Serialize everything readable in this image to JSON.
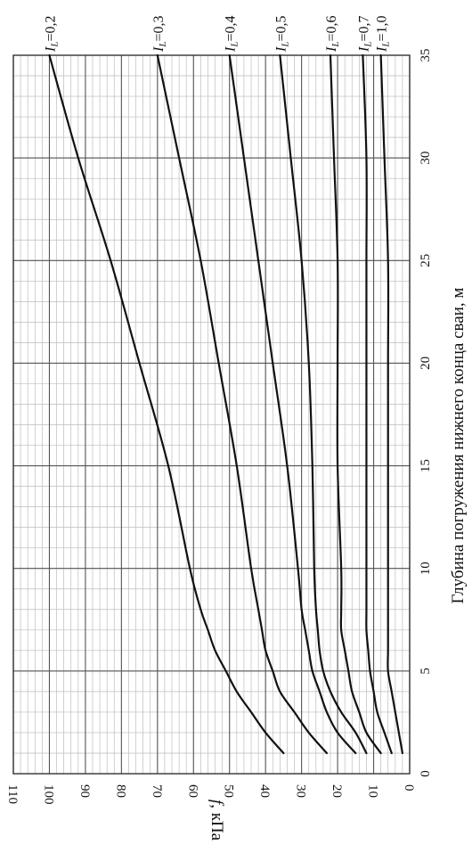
{
  "chart_data": {
    "type": "line",
    "orientation": "rotated-90-ccw",
    "xlabel": "Глубина погружения нижнего конца сваи, м",
    "ylabel": "f, кПа",
    "xlim": [
      0,
      35
    ],
    "ylim": [
      0,
      110
    ],
    "x_ticks": [
      0,
      5,
      10,
      15,
      20,
      25,
      30,
      35
    ],
    "y_ticks": [
      0,
      10,
      20,
      30,
      40,
      50,
      60,
      70,
      80,
      90,
      100,
      110
    ],
    "grid": true,
    "series": [
      {
        "name": "IL=0,2",
        "label_prefix": "I",
        "label_sub": "L",
        "label_value": "=0,2",
        "x": [
          1,
          2,
          3,
          4,
          5,
          6,
          7,
          8,
          10,
          15,
          20,
          25,
          30,
          35
        ],
        "values": [
          35,
          40,
          44,
          48,
          51,
          54,
          56,
          58,
          61,
          67,
          75,
          83,
          92,
          100
        ]
      },
      {
        "name": "IL=0,3",
        "label_prefix": "I",
        "label_sub": "L",
        "label_value": "=0,3",
        "x": [
          1,
          2,
          3,
          4,
          5,
          6,
          7,
          8,
          10,
          15,
          20,
          25,
          30,
          35
        ],
        "values": [
          23,
          28,
          32,
          36,
          38,
          40,
          41,
          42,
          44,
          48,
          53,
          58,
          64,
          70
        ]
      },
      {
        "name": "IL=0,4",
        "label_prefix": "I",
        "label_sub": "L",
        "label_value": "=0,4",
        "x": [
          1,
          2,
          3,
          4,
          5,
          6,
          7,
          8,
          10,
          15,
          20,
          25,
          30,
          35
        ],
        "values": [
          15,
          20,
          23,
          25,
          27,
          28,
          29,
          30,
          31,
          34,
          38,
          42,
          46,
          50
        ]
      },
      {
        "name": "IL=0,5",
        "label_prefix": "I",
        "label_sub": "L",
        "label_value": "=0,5",
        "x": [
          1,
          2,
          3,
          4,
          5,
          6,
          7,
          8,
          10,
          15,
          20,
          25,
          30,
          35
        ],
        "values": [
          12,
          15,
          19,
          22,
          24,
          25,
          25.5,
          26,
          26.5,
          27,
          28,
          30,
          33,
          36
        ]
      },
      {
        "name": "IL=0,6",
        "label_prefix": "I",
        "label_sub": "L",
        "label_value": "=0,6",
        "x": [
          1,
          2,
          3,
          4,
          5,
          6,
          7,
          8,
          10,
          15,
          20,
          25,
          30,
          35
        ],
        "values": [
          8,
          12,
          14,
          16,
          17,
          18,
          19,
          19,
          19,
          20,
          20,
          20,
          21,
          22
        ]
      },
      {
        "name": "IL=0,7",
        "label_prefix": "I",
        "label_sub": "L",
        "label_value": "=0,7",
        "x": [
          1,
          2,
          3,
          4,
          5,
          6,
          7,
          8,
          10,
          15,
          20,
          25,
          30,
          35
        ],
        "values": [
          5,
          7,
          9,
          10,
          11,
          11.5,
          12,
          12,
          12,
          12,
          12,
          12,
          12,
          13
        ]
      },
      {
        "name": "IL=1,0",
        "label_prefix": "I",
        "label_sub": "L",
        "label_value": "=1,0",
        "x": [
          1,
          2,
          3,
          4,
          5,
          6,
          7,
          8,
          10,
          15,
          20,
          25,
          30,
          35
        ],
        "values": [
          2,
          3,
          4,
          5,
          6,
          6,
          6,
          6,
          6,
          6,
          6,
          6,
          7,
          8
        ]
      }
    ]
  }
}
